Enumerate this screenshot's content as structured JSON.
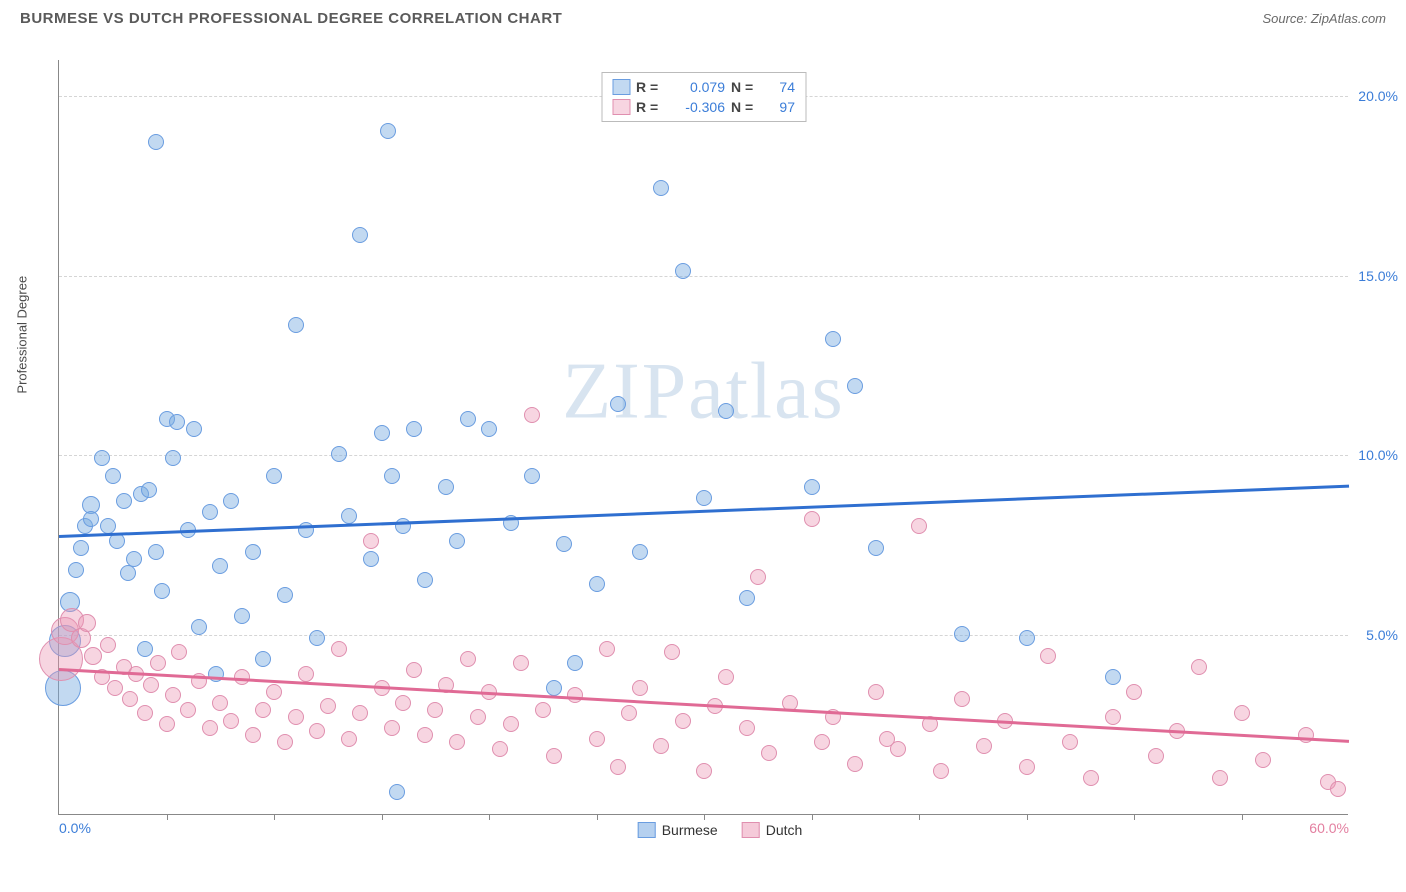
{
  "header": {
    "title": "BURMESE VS DUTCH PROFESSIONAL DEGREE CORRELATION CHART",
    "source": "Source: ZipAtlas.com"
  },
  "watermark": {
    "left": "ZIP",
    "right": "atlas"
  },
  "chart": {
    "type": "scatter",
    "y_label": "Professional Degree",
    "x_range": [
      0,
      60
    ],
    "y_range": [
      0,
      21
    ],
    "x_axis_labels": [
      {
        "value": 0,
        "text": "0.0%",
        "color": "#3b7dd8"
      },
      {
        "value": 60,
        "text": "60.0%",
        "color": "#e37fa0"
      }
    ],
    "x_ticks": [
      5,
      10,
      15,
      20,
      25,
      30,
      35,
      40,
      45,
      50,
      55
    ],
    "y_gridlines": [
      {
        "value": 5,
        "label": "5.0%"
      },
      {
        "value": 10,
        "label": "10.0%"
      },
      {
        "value": 15,
        "label": "15.0%"
      },
      {
        "value": 20,
        "label": "20.0%"
      }
    ],
    "y_label_color": "#3b7dd8",
    "series": [
      {
        "name": "Burmese",
        "fill": "rgba(120,170,225,0.45)",
        "stroke": "#6a9de0",
        "trend_color": "#2f6fd0",
        "trend": {
          "x0": 0,
          "y0": 7.8,
          "x1": 60,
          "y1": 9.2
        },
        "R": "0.079",
        "N": "74",
        "points": [
          {
            "x": 0.2,
            "y": 3.5,
            "r": 18
          },
          {
            "x": 0.3,
            "y": 4.8,
            "r": 16
          },
          {
            "x": 0.5,
            "y": 5.9,
            "r": 10
          },
          {
            "x": 0.8,
            "y": 6.8,
            "r": 8
          },
          {
            "x": 1.0,
            "y": 7.4,
            "r": 8
          },
          {
            "x": 1.2,
            "y": 8.0,
            "r": 8
          },
          {
            "x": 1.5,
            "y": 8.6,
            "r": 9
          },
          {
            "x": 1.5,
            "y": 8.2,
            "r": 8
          },
          {
            "x": 2.0,
            "y": 9.9,
            "r": 8
          },
          {
            "x": 2.3,
            "y": 8.0,
            "r": 8
          },
          {
            "x": 2.5,
            "y": 9.4,
            "r": 8
          },
          {
            "x": 2.7,
            "y": 7.6,
            "r": 8
          },
          {
            "x": 3.0,
            "y": 8.7,
            "r": 8
          },
          {
            "x": 3.2,
            "y": 6.7,
            "r": 8
          },
          {
            "x": 3.5,
            "y": 7.1,
            "r": 8
          },
          {
            "x": 3.8,
            "y": 8.9,
            "r": 8
          },
          {
            "x": 4.0,
            "y": 4.6,
            "r": 8
          },
          {
            "x": 4.2,
            "y": 9.0,
            "r": 8
          },
          {
            "x": 4.5,
            "y": 7.3,
            "r": 8
          },
          {
            "x": 4.8,
            "y": 6.2,
            "r": 8
          },
          {
            "x": 5.0,
            "y": 11.0,
            "r": 8
          },
          {
            "x": 5.3,
            "y": 9.9,
            "r": 8
          },
          {
            "x": 5.5,
            "y": 10.9,
            "r": 8
          },
          {
            "x": 6.0,
            "y": 7.9,
            "r": 8
          },
          {
            "x": 6.3,
            "y": 10.7,
            "r": 8
          },
          {
            "x": 6.5,
            "y": 5.2,
            "r": 8
          },
          {
            "x": 7.0,
            "y": 8.4,
            "r": 8
          },
          {
            "x": 7.3,
            "y": 3.9,
            "r": 8
          },
          {
            "x": 7.5,
            "y": 6.9,
            "r": 8
          },
          {
            "x": 8.0,
            "y": 8.7,
            "r": 8
          },
          {
            "x": 8.5,
            "y": 5.5,
            "r": 8
          },
          {
            "x": 9.0,
            "y": 7.3,
            "r": 8
          },
          {
            "x": 9.5,
            "y": 4.3,
            "r": 8
          },
          {
            "x": 10.0,
            "y": 9.4,
            "r": 8
          },
          {
            "x": 10.5,
            "y": 6.1,
            "r": 8
          },
          {
            "x": 11.0,
            "y": 13.6,
            "r": 8
          },
          {
            "x": 11.5,
            "y": 7.9,
            "r": 8
          },
          {
            "x": 12.0,
            "y": 4.9,
            "r": 8
          },
          {
            "x": 13.0,
            "y": 10.0,
            "r": 8
          },
          {
            "x": 13.5,
            "y": 8.3,
            "r": 8
          },
          {
            "x": 14.0,
            "y": 16.1,
            "r": 8
          },
          {
            "x": 14.5,
            "y": 7.1,
            "r": 8
          },
          {
            "x": 15.0,
            "y": 10.6,
            "r": 8
          },
          {
            "x": 15.3,
            "y": 19.0,
            "r": 8
          },
          {
            "x": 15.5,
            "y": 9.4,
            "r": 8
          },
          {
            "x": 15.7,
            "y": 0.6,
            "r": 8
          },
          {
            "x": 16.0,
            "y": 8.0,
            "r": 8
          },
          {
            "x": 16.5,
            "y": 10.7,
            "r": 8
          },
          {
            "x": 17.0,
            "y": 6.5,
            "r": 8
          },
          {
            "x": 18.0,
            "y": 9.1,
            "r": 8
          },
          {
            "x": 18.5,
            "y": 7.6,
            "r": 8
          },
          {
            "x": 19.0,
            "y": 11.0,
            "r": 8
          },
          {
            "x": 20.0,
            "y": 10.7,
            "r": 8
          },
          {
            "x": 21.0,
            "y": 8.1,
            "r": 8
          },
          {
            "x": 22.0,
            "y": 9.4,
            "r": 8
          },
          {
            "x": 23.0,
            "y": 3.5,
            "r": 8
          },
          {
            "x": 23.5,
            "y": 7.5,
            "r": 8
          },
          {
            "x": 24.0,
            "y": 4.2,
            "r": 8
          },
          {
            "x": 25.0,
            "y": 6.4,
            "r": 8
          },
          {
            "x": 26.0,
            "y": 11.4,
            "r": 8
          },
          {
            "x": 27.0,
            "y": 7.3,
            "r": 8
          },
          {
            "x": 28.0,
            "y": 17.4,
            "r": 8
          },
          {
            "x": 29.0,
            "y": 15.1,
            "r": 8
          },
          {
            "x": 30.0,
            "y": 8.8,
            "r": 8
          },
          {
            "x": 31.0,
            "y": 11.2,
            "r": 8
          },
          {
            "x": 32.0,
            "y": 6.0,
            "r": 8
          },
          {
            "x": 35.0,
            "y": 9.1,
            "r": 8
          },
          {
            "x": 36.0,
            "y": 13.2,
            "r": 8
          },
          {
            "x": 37.0,
            "y": 11.9,
            "r": 8
          },
          {
            "x": 38.0,
            "y": 7.4,
            "r": 8
          },
          {
            "x": 42.0,
            "y": 5.0,
            "r": 8
          },
          {
            "x": 45.0,
            "y": 4.9,
            "r": 8
          },
          {
            "x": 49.0,
            "y": 3.8,
            "r": 8
          },
          {
            "x": 4.5,
            "y": 18.7,
            "r": 8
          }
        ]
      },
      {
        "name": "Dutch",
        "fill": "rgba(235,150,180,0.40)",
        "stroke": "#e08faf",
        "trend_color": "#e06a95",
        "trend": {
          "x0": 0,
          "y0": 4.1,
          "x1": 60,
          "y1": 2.1
        },
        "R": "-0.306",
        "N": "97",
        "points": [
          {
            "x": 0.1,
            "y": 4.3,
            "r": 22
          },
          {
            "x": 0.3,
            "y": 5.1,
            "r": 14
          },
          {
            "x": 0.6,
            "y": 5.4,
            "r": 12
          },
          {
            "x": 1.0,
            "y": 4.9,
            "r": 10
          },
          {
            "x": 1.3,
            "y": 5.3,
            "r": 9
          },
          {
            "x": 1.6,
            "y": 4.4,
            "r": 9
          },
          {
            "x": 2.0,
            "y": 3.8,
            "r": 8
          },
          {
            "x": 2.3,
            "y": 4.7,
            "r": 8
          },
          {
            "x": 2.6,
            "y": 3.5,
            "r": 8
          },
          {
            "x": 3.0,
            "y": 4.1,
            "r": 8
          },
          {
            "x": 3.3,
            "y": 3.2,
            "r": 8
          },
          {
            "x": 3.6,
            "y": 3.9,
            "r": 8
          },
          {
            "x": 4.0,
            "y": 2.8,
            "r": 8
          },
          {
            "x": 4.3,
            "y": 3.6,
            "r": 8
          },
          {
            "x": 4.6,
            "y": 4.2,
            "r": 8
          },
          {
            "x": 5.0,
            "y": 2.5,
            "r": 8
          },
          {
            "x": 5.3,
            "y": 3.3,
            "r": 8
          },
          {
            "x": 5.6,
            "y": 4.5,
            "r": 8
          },
          {
            "x": 6.0,
            "y": 2.9,
            "r": 8
          },
          {
            "x": 6.5,
            "y": 3.7,
            "r": 8
          },
          {
            "x": 7.0,
            "y": 2.4,
            "r": 8
          },
          {
            "x": 7.5,
            "y": 3.1,
            "r": 8
          },
          {
            "x": 8.0,
            "y": 2.6,
            "r": 8
          },
          {
            "x": 8.5,
            "y": 3.8,
            "r": 8
          },
          {
            "x": 9.0,
            "y": 2.2,
            "r": 8
          },
          {
            "x": 9.5,
            "y": 2.9,
            "r": 8
          },
          {
            "x": 10.0,
            "y": 3.4,
            "r": 8
          },
          {
            "x": 10.5,
            "y": 2.0,
            "r": 8
          },
          {
            "x": 11.0,
            "y": 2.7,
            "r": 8
          },
          {
            "x": 11.5,
            "y": 3.9,
            "r": 8
          },
          {
            "x": 12.0,
            "y": 2.3,
            "r": 8
          },
          {
            "x": 12.5,
            "y": 3.0,
            "r": 8
          },
          {
            "x": 13.0,
            "y": 4.6,
            "r": 8
          },
          {
            "x": 13.5,
            "y": 2.1,
            "r": 8
          },
          {
            "x": 14.0,
            "y": 2.8,
            "r": 8
          },
          {
            "x": 14.5,
            "y": 7.6,
            "r": 8
          },
          {
            "x": 15.0,
            "y": 3.5,
            "r": 8
          },
          {
            "x": 15.5,
            "y": 2.4,
            "r": 8
          },
          {
            "x": 16.0,
            "y": 3.1,
            "r": 8
          },
          {
            "x": 16.5,
            "y": 4.0,
            "r": 8
          },
          {
            "x": 17.0,
            "y": 2.2,
            "r": 8
          },
          {
            "x": 17.5,
            "y": 2.9,
            "r": 8
          },
          {
            "x": 18.0,
            "y": 3.6,
            "r": 8
          },
          {
            "x": 18.5,
            "y": 2.0,
            "r": 8
          },
          {
            "x": 19.0,
            "y": 4.3,
            "r": 8
          },
          {
            "x": 19.5,
            "y": 2.7,
            "r": 8
          },
          {
            "x": 20.0,
            "y": 3.4,
            "r": 8
          },
          {
            "x": 20.5,
            "y": 1.8,
            "r": 8
          },
          {
            "x": 21.0,
            "y": 2.5,
            "r": 8
          },
          {
            "x": 21.5,
            "y": 4.2,
            "r": 8
          },
          {
            "x": 22.0,
            "y": 11.1,
            "r": 8
          },
          {
            "x": 22.5,
            "y": 2.9,
            "r": 8
          },
          {
            "x": 23.0,
            "y": 1.6,
            "r": 8
          },
          {
            "x": 24.0,
            "y": 3.3,
            "r": 8
          },
          {
            "x": 25.0,
            "y": 2.1,
            "r": 8
          },
          {
            "x": 25.5,
            "y": 4.6,
            "r": 8
          },
          {
            "x": 26.0,
            "y": 1.3,
            "r": 8
          },
          {
            "x": 26.5,
            "y": 2.8,
            "r": 8
          },
          {
            "x": 27.0,
            "y": 3.5,
            "r": 8
          },
          {
            "x": 28.0,
            "y": 1.9,
            "r": 8
          },
          {
            "x": 28.5,
            "y": 4.5,
            "r": 8
          },
          {
            "x": 29.0,
            "y": 2.6,
            "r": 8
          },
          {
            "x": 30.0,
            "y": 1.2,
            "r": 8
          },
          {
            "x": 30.5,
            "y": 3.0,
            "r": 8
          },
          {
            "x": 31.0,
            "y": 3.8,
            "r": 8
          },
          {
            "x": 32.0,
            "y": 2.4,
            "r": 8
          },
          {
            "x": 32.5,
            "y": 6.6,
            "r": 8
          },
          {
            "x": 33.0,
            "y": 1.7,
            "r": 8
          },
          {
            "x": 34.0,
            "y": 3.1,
            "r": 8
          },
          {
            "x": 35.0,
            "y": 8.2,
            "r": 8
          },
          {
            "x": 35.5,
            "y": 2.0,
            "r": 8
          },
          {
            "x": 36.0,
            "y": 2.7,
            "r": 8
          },
          {
            "x": 37.0,
            "y": 1.4,
            "r": 8
          },
          {
            "x": 38.0,
            "y": 3.4,
            "r": 8
          },
          {
            "x": 38.5,
            "y": 2.1,
            "r": 8
          },
          {
            "x": 39.0,
            "y": 1.8,
            "r": 8
          },
          {
            "x": 40.0,
            "y": 8.0,
            "r": 8
          },
          {
            "x": 40.5,
            "y": 2.5,
            "r": 8
          },
          {
            "x": 41.0,
            "y": 1.2,
            "r": 8
          },
          {
            "x": 42.0,
            "y": 3.2,
            "r": 8
          },
          {
            "x": 43.0,
            "y": 1.9,
            "r": 8
          },
          {
            "x": 44.0,
            "y": 2.6,
            "r": 8
          },
          {
            "x": 45.0,
            "y": 1.3,
            "r": 8
          },
          {
            "x": 46.0,
            "y": 4.4,
            "r": 8
          },
          {
            "x": 47.0,
            "y": 2.0,
            "r": 8
          },
          {
            "x": 48.0,
            "y": 1.0,
            "r": 8
          },
          {
            "x": 49.0,
            "y": 2.7,
            "r": 8
          },
          {
            "x": 50.0,
            "y": 3.4,
            "r": 8
          },
          {
            "x": 51.0,
            "y": 1.6,
            "r": 8
          },
          {
            "x": 52.0,
            "y": 2.3,
            "r": 8
          },
          {
            "x": 53.0,
            "y": 4.1,
            "r": 8
          },
          {
            "x": 54.0,
            "y": 1.0,
            "r": 8
          },
          {
            "x": 55.0,
            "y": 2.8,
            "r": 8
          },
          {
            "x": 56.0,
            "y": 1.5,
            "r": 8
          },
          {
            "x": 58.0,
            "y": 2.2,
            "r": 8
          },
          {
            "x": 59.0,
            "y": 0.9,
            "r": 8
          },
          {
            "x": 59.5,
            "y": 0.7,
            "r": 8
          }
        ]
      }
    ],
    "legend": [
      {
        "label": "Burmese",
        "fill": "rgba(120,170,225,0.55)",
        "stroke": "#6a9de0"
      },
      {
        "label": "Dutch",
        "fill": "rgba(235,150,180,0.50)",
        "stroke": "#e08faf"
      }
    ]
  }
}
